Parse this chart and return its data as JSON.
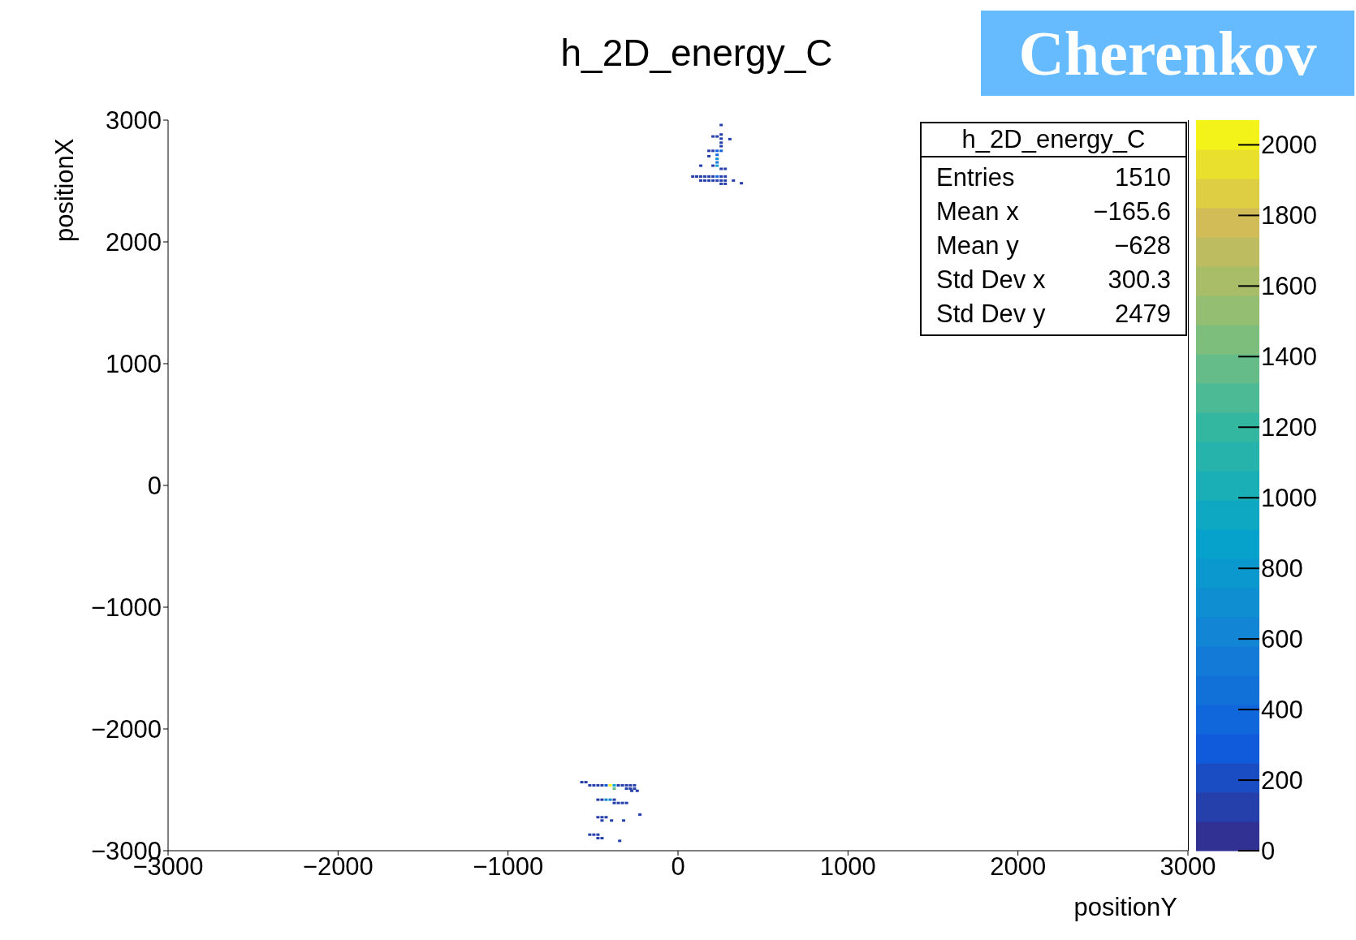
{
  "chart_data": {
    "type": "scatter",
    "title": "h_2D_energy_C",
    "xlabel": "positionY",
    "ylabel": "positionX",
    "x": [
      254,
      254,
      206,
      230,
      305,
      254,
      254,
      254,
      182,
      206,
      230,
      254,
      182,
      230,
      230,
      230,
      134,
      206,
      230,
      254,
      278,
      87,
      110,
      134,
      158,
      182,
      206,
      230,
      254,
      278,
      134,
      158,
      182,
      206,
      230,
      254,
      278,
      326,
      254,
      278,
      373,
      -566,
      -542,
      -519,
      -495,
      -471,
      -447,
      -423,
      -399,
      -375,
      -351,
      -327,
      -303,
      -280,
      -256,
      -375,
      -303,
      -280,
      -256,
      -272,
      -240,
      -471,
      -447,
      -423,
      -399,
      -375,
      -375,
      -351,
      -327,
      -303,
      -224,
      -471,
      -447,
      -423,
      -447,
      -391,
      -320,
      -519,
      -495,
      -471,
      -471,
      -447,
      -343
    ],
    "values": [
      2960,
      2882,
      2866,
      2866,
      2844,
      2848,
      2815,
      2786,
      2748,
      2748,
      2748,
      2748,
      2704,
      2715,
      2682,
      2653,
      2626,
      2626,
      2626,
      2600,
      2600,
      2537,
      2537,
      2537,
      2537,
      2537,
      2537,
      2537,
      2537,
      2537,
      2504,
      2504,
      2504,
      2504,
      2504,
      2504,
      2504,
      2504,
      2477,
      2477,
      2482,
      -2437,
      -2437,
      -2463,
      -2463,
      -2463,
      -2463,
      -2463,
      -2463,
      -2463,
      -2463,
      -2463,
      -2463,
      -2463,
      -2463,
      -2490,
      -2490,
      -2490,
      -2490,
      -2508,
      -2508,
      -2581,
      -2581,
      -2581,
      -2581,
      -2581,
      -2608,
      -2608,
      -2608,
      -2608,
      -2703,
      -2725,
      -2725,
      -2725,
      -2752,
      -2752,
      -2752,
      -2868,
      -2868,
      -2868,
      -2897,
      -2897,
      -2919
    ],
    "cvalues": [
      100,
      100,
      100,
      100,
      100,
      100,
      100,
      100,
      100,
      100,
      300,
      400,
      100,
      400,
      700,
      500,
      100,
      100,
      900,
      100,
      100,
      100,
      100,
      100,
      100,
      100,
      100,
      400,
      100,
      100,
      100,
      100,
      100,
      100,
      100,
      100,
      100,
      100,
      100,
      100,
      100,
      100,
      100,
      100,
      100,
      100,
      100,
      300,
      2000,
      900,
      100,
      100,
      100,
      100,
      100,
      1400,
      100,
      100,
      100,
      100,
      100,
      100,
      100,
      700,
      600,
      100,
      100,
      100,
      100,
      100,
      100,
      100,
      100,
      100,
      100,
      100,
      100,
      100,
      100,
      100,
      100,
      100,
      100
    ],
    "xlim": [
      -3000,
      3000
    ],
    "ylim": [
      -3000,
      3000
    ],
    "xticks": [
      -3000,
      -2000,
      -1000,
      0,
      1000,
      2000,
      3000
    ],
    "yticks": [
      -3000,
      -2000,
      -1000,
      0,
      1000,
      2000,
      3000
    ],
    "clim": [
      0,
      2070
    ],
    "cticks": [
      0,
      200,
      400,
      600,
      800,
      1000,
      1200,
      1400,
      1600,
      1800,
      2000
    ],
    "marker": "square",
    "annotations": [
      "Cherenkov",
      "h_2D_energy_C",
      "Entries",
      "1510",
      "Mean x",
      "−165.6",
      "Mean y",
      "−628",
      "Std Dev x",
      "300.3",
      "Std Dev y",
      "2479"
    ]
  }
}
